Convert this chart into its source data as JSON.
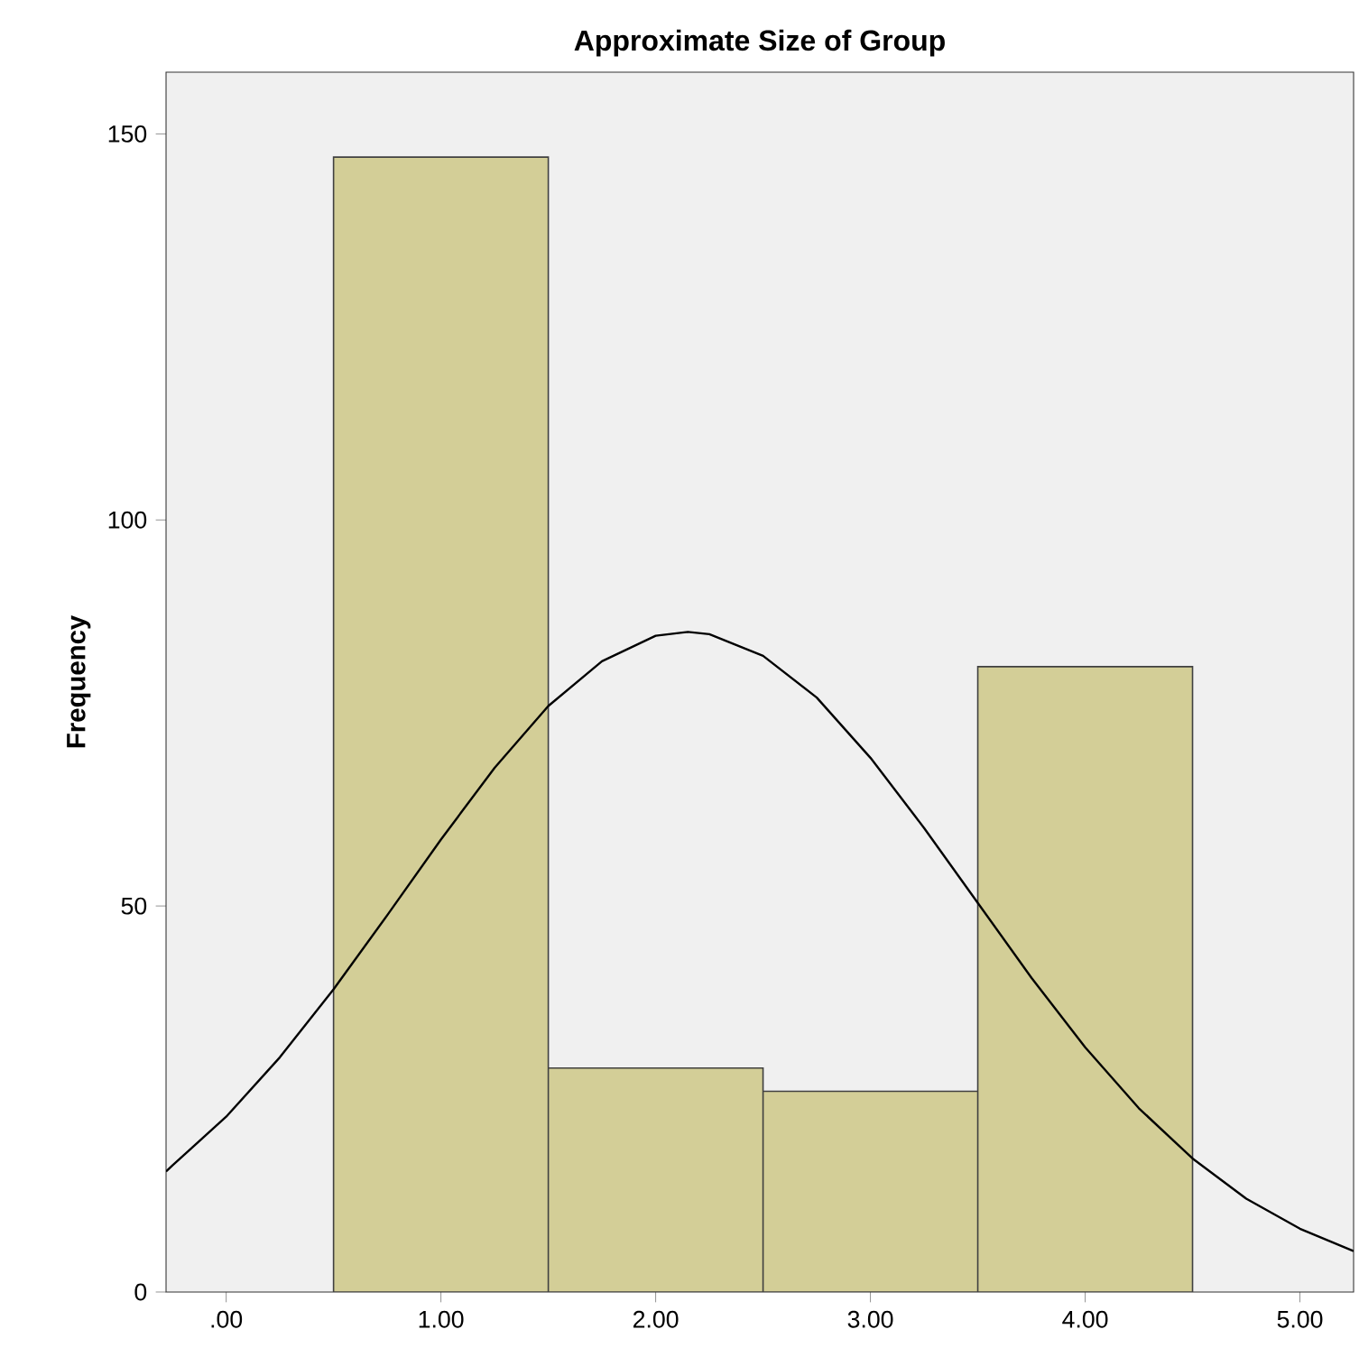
{
  "chart_data": {
    "type": "histogram",
    "title": "Approximate Size of Group",
    "ylabel": "Frequency",
    "bins": [
      0.5,
      1.5,
      2.5,
      3.5,
      4.5
    ],
    "values": [
      147,
      29,
      26,
      81
    ],
    "color": "#d3ce97",
    "series": [
      {
        "type": "line",
        "color": "#000000",
        "x": [
          -0.28,
          -0.25,
          0,
          0.25,
          0.5,
          0.75,
          1,
          1.25,
          1.5,
          1.75,
          2,
          2.15,
          2.25,
          2.5,
          2.75,
          3,
          3.25,
          3.5,
          3.75,
          4,
          4.25,
          4.5,
          4.75,
          5,
          5.25
        ],
        "values": [
          15.6,
          16.4,
          22.7,
          30.4,
          39.2,
          48.8,
          58.6,
          67.9,
          75.9,
          81.7,
          85.0,
          85.5,
          85.2,
          82.4,
          77.0,
          69.2,
          60.1,
          50.4,
          40.7,
          31.7,
          23.8,
          17.3,
          12.1,
          8.2,
          5.3
        ]
      }
    ],
    "xlim": [
      -0.28,
      5.25
    ],
    "ylim": [
      0,
      158
    ],
    "xticks": [
      {
        "value": 0,
        "label": ".00"
      },
      {
        "value": 1,
        "label": "1.00"
      },
      {
        "value": 2,
        "label": "2.00"
      },
      {
        "value": 3,
        "label": "3.00"
      },
      {
        "value": 4,
        "label": "4.00"
      },
      {
        "value": 5,
        "label": "5.00"
      }
    ],
    "yticks": [
      0,
      50,
      100,
      150
    ],
    "grid": false
  }
}
